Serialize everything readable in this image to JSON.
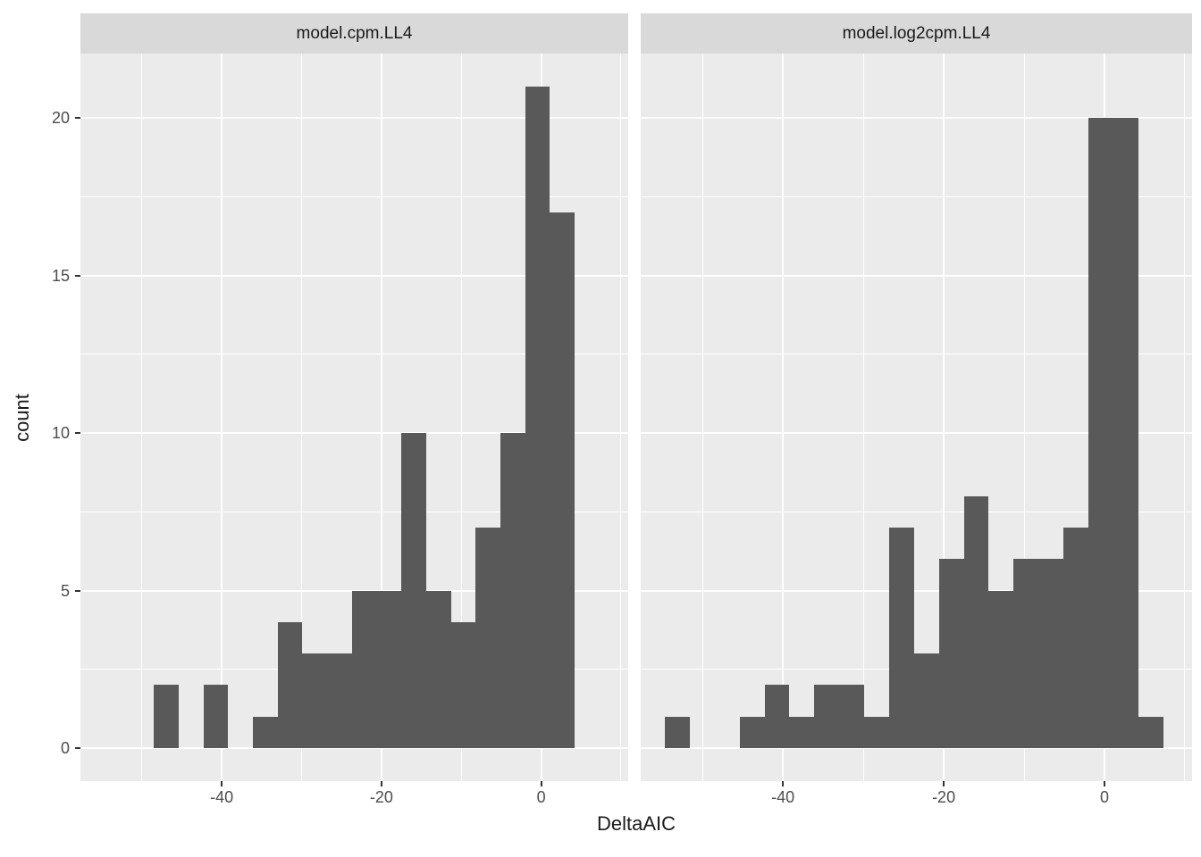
{
  "figure": {
    "xlabel": "DeltaAIC",
    "ylabel": "count"
  },
  "style": {
    "bar_fill": "#595959",
    "panel_bg": "#EBEBEB",
    "strip_bg": "#D9D9D9",
    "grid_color": "#FFFFFF",
    "tick_label_color": "#4D4D4D",
    "axis_title_color": "#1A1A1A",
    "strip_text_color": "#1A1A1A",
    "tick_mark_color": "#333333",
    "figure_bg": "#FFFFFF"
  },
  "chart_data": [
    {
      "type": "bar",
      "subtype": "histogram",
      "facet": "model.cpm.LL4",
      "xlabel": "DeltaAIC",
      "ylabel": "count",
      "x_breaks": [
        -40,
        -20,
        0
      ],
      "x_minor_breaks": [
        -50,
        -30,
        -10,
        10
      ],
      "y_breaks": [
        0,
        5,
        10,
        15,
        20
      ],
      "y_minor_breaks": [
        2.5,
        7.5,
        12.5,
        17.5
      ],
      "xlim": [
        -57.7,
        10.9
      ],
      "ylim": [
        -1.05,
        22.05
      ],
      "binwidth": 3.1,
      "grid": true,
      "legend": "none",
      "bins": [
        {
          "x0": -48.5,
          "x1": -45.4,
          "count": 2
        },
        {
          "x0": -45.4,
          "x1": -42.3,
          "count": 0
        },
        {
          "x0": -42.3,
          "x1": -39.2,
          "count": 2
        },
        {
          "x0": -39.2,
          "x1": -36.1,
          "count": 0
        },
        {
          "x0": -36.1,
          "x1": -33.0,
          "count": 1
        },
        {
          "x0": -33.0,
          "x1": -29.9,
          "count": 4
        },
        {
          "x0": -29.9,
          "x1": -26.8,
          "count": 3
        },
        {
          "x0": -26.8,
          "x1": -23.7,
          "count": 3
        },
        {
          "x0": -23.7,
          "x1": -20.6,
          "count": 5
        },
        {
          "x0": -20.6,
          "x1": -17.5,
          "count": 5
        },
        {
          "x0": -17.5,
          "x1": -14.4,
          "count": 10
        },
        {
          "x0": -14.4,
          "x1": -11.3,
          "count": 5
        },
        {
          "x0": -11.3,
          "x1": -8.2,
          "count": 4
        },
        {
          "x0": -8.2,
          "x1": -5.1,
          "count": 7
        },
        {
          "x0": -5.1,
          "x1": -2.0,
          "count": 10
        },
        {
          "x0": -2.0,
          "x1": 1.1,
          "count": 21
        },
        {
          "x0": 1.1,
          "x1": 4.2,
          "count": 17
        }
      ]
    },
    {
      "type": "bar",
      "subtype": "histogram",
      "facet": "model.log2cpm.LL4",
      "xlabel": "DeltaAIC",
      "ylabel": "count",
      "x_breaks": [
        -40,
        -20,
        0
      ],
      "x_minor_breaks": [
        -50,
        -30,
        -10,
        10
      ],
      "y_breaks": [
        0,
        5,
        10,
        15,
        20
      ],
      "y_minor_breaks": [
        2.5,
        7.5,
        12.5,
        17.5
      ],
      "xlim": [
        -57.7,
        10.9
      ],
      "ylim": [
        -1.05,
        22.05
      ],
      "binwidth": 3.1,
      "grid": true,
      "legend": "none",
      "bins": [
        {
          "x0": -54.7,
          "x1": -51.6,
          "count": 1
        },
        {
          "x0": -51.6,
          "x1": -48.5,
          "count": 0
        },
        {
          "x0": -48.5,
          "x1": -45.4,
          "count": 0
        },
        {
          "x0": -45.4,
          "x1": -42.3,
          "count": 1
        },
        {
          "x0": -42.3,
          "x1": -39.2,
          "count": 2
        },
        {
          "x0": -39.2,
          "x1": -36.1,
          "count": 1
        },
        {
          "x0": -36.1,
          "x1": -33.0,
          "count": 2
        },
        {
          "x0": -33.0,
          "x1": -29.9,
          "count": 2
        },
        {
          "x0": -29.9,
          "x1": -26.8,
          "count": 1
        },
        {
          "x0": -26.8,
          "x1": -23.7,
          "count": 7
        },
        {
          "x0": -23.7,
          "x1": -20.6,
          "count": 3
        },
        {
          "x0": -20.6,
          "x1": -17.5,
          "count": 6
        },
        {
          "x0": -17.5,
          "x1": -14.4,
          "count": 8
        },
        {
          "x0": -14.4,
          "x1": -11.3,
          "count": 5
        },
        {
          "x0": -11.3,
          "x1": -8.2,
          "count": 6
        },
        {
          "x0": -8.2,
          "x1": -5.1,
          "count": 6
        },
        {
          "x0": -5.1,
          "x1": -2.0,
          "count": 7
        },
        {
          "x0": -2.0,
          "x1": 1.1,
          "count": 20
        },
        {
          "x0": 1.1,
          "x1": 4.2,
          "count": 20
        },
        {
          "x0": 4.2,
          "x1": 7.3,
          "count": 1
        }
      ]
    }
  ]
}
